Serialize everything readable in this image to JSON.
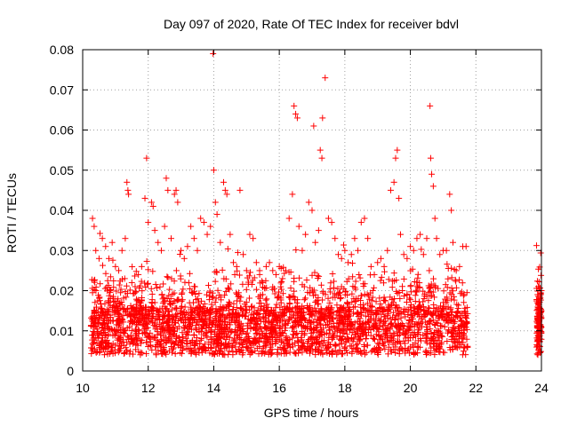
{
  "chart_data": {
    "type": "scatter",
    "title": "Day 097 of 2020, Rate Of TEC Index for receiver bdvl",
    "xlabel": "GPS time / hours",
    "ylabel": "ROTI / TECUs",
    "xlim": [
      10,
      24
    ],
    "ylim": [
      0,
      0.08
    ],
    "xticks": [
      10,
      12,
      14,
      16,
      18,
      20,
      22,
      24
    ],
    "xtick_labels": [
      "10",
      "12",
      "14",
      "16",
      "18",
      "20",
      "22",
      "24"
    ],
    "yticks": [
      0,
      0.01,
      0.02,
      0.03,
      0.04,
      0.05,
      0.06,
      0.07,
      0.08
    ],
    "ytick_labels": [
      "0",
      "0.01",
      "0.02",
      "0.03",
      "0.04",
      "0.05",
      "0.06",
      "0.07",
      "0.08"
    ],
    "grid": true,
    "marker": "+",
    "color": "#ff0000",
    "series": [
      {
        "description_density": "dense",
        "points": [
          [
            10.3,
            0.038
          ],
          [
            10.35,
            0.036
          ],
          [
            10.4,
            0.03
          ],
          [
            10.5,
            0.028
          ],
          [
            10.6,
            0.033
          ],
          [
            10.7,
            0.031
          ],
          [
            10.8,
            0.028
          ],
          [
            10.9,
            0.032
          ],
          [
            11.0,
            0.026
          ],
          [
            11.1,
            0.025
          ],
          [
            11.2,
            0.03
          ],
          [
            11.3,
            0.033
          ],
          [
            11.35,
            0.047
          ],
          [
            11.38,
            0.045
          ],
          [
            11.4,
            0.044
          ],
          [
            11.5,
            0.022
          ],
          [
            11.6,
            0.021
          ],
          [
            11.7,
            0.024
          ],
          [
            11.8,
            0.026
          ],
          [
            11.9,
            0.043
          ],
          [
            11.95,
            0.053
          ],
          [
            12.0,
            0.037
          ],
          [
            12.1,
            0.042
          ],
          [
            12.15,
            0.041
          ],
          [
            12.2,
            0.035
          ],
          [
            12.3,
            0.032
          ],
          [
            12.4,
            0.03
          ],
          [
            12.5,
            0.036
          ],
          [
            12.55,
            0.048
          ],
          [
            12.6,
            0.045
          ],
          [
            12.7,
            0.033
          ],
          [
            12.8,
            0.044
          ],
          [
            12.85,
            0.045
          ],
          [
            12.9,
            0.042
          ],
          [
            13.0,
            0.03
          ],
          [
            13.1,
            0.028
          ],
          [
            13.2,
            0.031
          ],
          [
            13.3,
            0.036
          ],
          [
            13.4,
            0.033
          ],
          [
            13.5,
            0.03
          ],
          [
            13.6,
            0.038
          ],
          [
            13.7,
            0.037
          ],
          [
            13.8,
            0.034
          ],
          [
            13.9,
            0.036
          ],
          [
            13.98,
            0.079
          ],
          [
            14.0,
            0.05
          ],
          [
            14.05,
            0.042
          ],
          [
            14.1,
            0.039
          ],
          [
            14.2,
            0.032
          ],
          [
            14.3,
            0.047
          ],
          [
            14.35,
            0.045
          ],
          [
            14.4,
            0.044
          ],
          [
            14.5,
            0.034
          ],
          [
            14.6,
            0.027
          ],
          [
            14.7,
            0.026
          ],
          [
            14.8,
            0.045
          ],
          [
            14.9,
            0.029
          ],
          [
            15.0,
            0.025
          ],
          [
            15.1,
            0.034
          ],
          [
            15.2,
            0.033
          ],
          [
            15.3,
            0.027
          ],
          [
            15.4,
            0.024
          ],
          [
            15.5,
            0.022
          ],
          [
            15.6,
            0.026
          ],
          [
            15.7,
            0.027
          ],
          [
            15.8,
            0.025
          ],
          [
            15.9,
            0.024
          ],
          [
            16.0,
            0.026
          ],
          [
            16.1,
            0.023
          ],
          [
            16.2,
            0.025
          ],
          [
            16.3,
            0.038
          ],
          [
            16.4,
            0.044
          ],
          [
            16.45,
            0.066
          ],
          [
            16.5,
            0.064
          ],
          [
            16.55,
            0.063
          ],
          [
            16.6,
            0.036
          ],
          [
            16.7,
            0.03
          ],
          [
            16.8,
            0.034
          ],
          [
            16.9,
            0.042
          ],
          [
            17.0,
            0.04
          ],
          [
            17.05,
            0.061
          ],
          [
            17.1,
            0.032
          ],
          [
            17.2,
            0.035
          ],
          [
            17.25,
            0.055
          ],
          [
            17.3,
            0.053
          ],
          [
            17.32,
            0.063
          ],
          [
            17.4,
            0.073
          ],
          [
            17.5,
            0.038
          ],
          [
            17.6,
            0.037
          ],
          [
            17.7,
            0.033
          ],
          [
            17.8,
            0.029
          ],
          [
            17.9,
            0.028
          ],
          [
            18.0,
            0.03
          ],
          [
            18.1,
            0.027
          ],
          [
            18.2,
            0.029
          ],
          [
            18.3,
            0.033
          ],
          [
            18.4,
            0.03
          ],
          [
            18.5,
            0.037
          ],
          [
            18.6,
            0.038
          ],
          [
            18.7,
            0.033
          ],
          [
            18.8,
            0.026
          ],
          [
            18.9,
            0.024
          ],
          [
            19.0,
            0.027
          ],
          [
            19.1,
            0.028
          ],
          [
            19.2,
            0.026
          ],
          [
            19.3,
            0.03
          ],
          [
            19.4,
            0.045
          ],
          [
            19.5,
            0.047
          ],
          [
            19.55,
            0.053
          ],
          [
            19.6,
            0.055
          ],
          [
            19.65,
            0.043
          ],
          [
            19.7,
            0.034
          ],
          [
            19.8,
            0.029
          ],
          [
            19.9,
            0.028
          ],
          [
            20.0,
            0.031
          ],
          [
            20.1,
            0.03
          ],
          [
            20.2,
            0.033
          ],
          [
            20.3,
            0.034
          ],
          [
            20.4,
            0.029
          ],
          [
            20.5,
            0.033
          ],
          [
            20.6,
            0.066
          ],
          [
            20.62,
            0.053
          ],
          [
            20.65,
            0.049
          ],
          [
            20.7,
            0.046
          ],
          [
            20.75,
            0.038
          ],
          [
            20.8,
            0.033
          ],
          [
            20.9,
            0.029
          ],
          [
            21.0,
            0.03
          ],
          [
            21.1,
            0.03
          ],
          [
            21.2,
            0.044
          ],
          [
            21.25,
            0.04
          ],
          [
            21.3,
            0.032
          ],
          [
            21.4,
            0.025
          ],
          [
            21.5,
            0.026
          ],
          [
            21.6,
            0.031
          ],
          [
            21.7,
            0.031
          ],
          [
            23.9,
            0.017
          ],
          [
            23.95,
            0.018
          ],
          [
            24.0,
            0.02
          ]
        ]
      }
    ]
  }
}
